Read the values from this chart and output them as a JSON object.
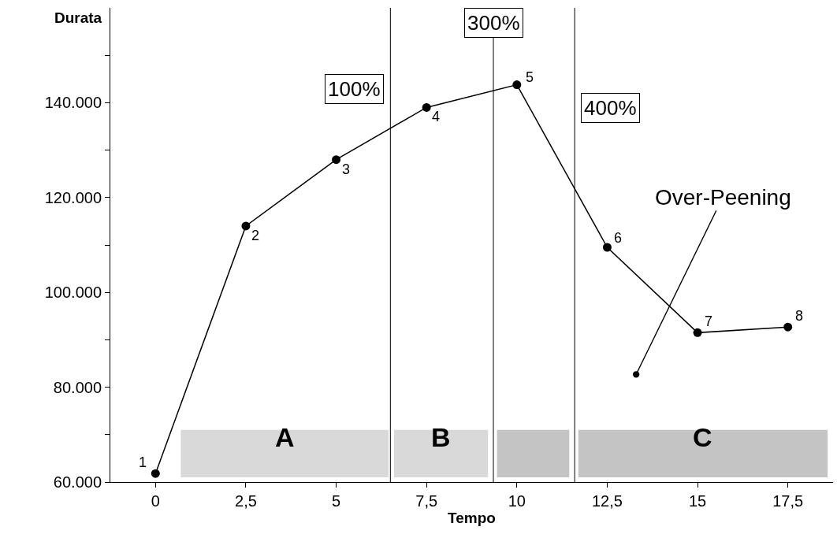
{
  "chart_data": {
    "type": "line",
    "xlabel": "Tempo",
    "ylabel": "Durata",
    "x": [
      0,
      2.5,
      5,
      7.5,
      10,
      12.5,
      15,
      17.5
    ],
    "series": [
      {
        "color": "#000000",
        "values": [
          61800,
          114000,
          128000,
          139000,
          143800,
          109500,
          91500,
          92700
        ]
      }
    ],
    "xlim": [
      -1.25,
      18.75
    ],
    "ylim": [
      60000,
      160000
    ],
    "xticks": [
      0,
      {
        "value": 2.5,
        "label": "2,5"
      },
      5,
      {
        "value": 7.5,
        "label": "7,5"
      },
      10,
      {
        "value": 12.5,
        "label": "12,5"
      },
      15,
      {
        "value": 17.5,
        "label": "17,5"
      }
    ],
    "yticks": [
      {
        "value": 60000,
        "label": "60.000"
      },
      {
        "value": 70000,
        "label": null
      },
      {
        "value": 80000,
        "label": "80.000"
      },
      {
        "value": 90000,
        "label": null
      },
      {
        "value": 100000,
        "label": "100.000"
      },
      {
        "value": 110000,
        "label": null
      },
      {
        "value": 120000,
        "label": "120.000"
      },
      {
        "value": 130000,
        "label": null
      },
      {
        "value": 140000,
        "label": "140.000"
      },
      {
        "value": 150000,
        "label": null
      }
    ],
    "ref_lines": [
      {
        "axis": "x",
        "value": 6.5,
        "color": "#000000"
      },
      {
        "axis": "x",
        "value": 9.35,
        "color": "#000000"
      },
      {
        "axis": "x",
        "value": 11.6,
        "color": "#000000"
      }
    ],
    "bands": [
      {
        "axis": "x",
        "from": 0.7,
        "to": 6.45,
        "label": "A",
        "color": "#d9d9d9"
      },
      {
        "axis": "x",
        "from": 6.6,
        "to": 9.2,
        "label": "B",
        "color": "#d9d9d9"
      },
      {
        "axis": "x",
        "from": 9.45,
        "to": 11.45,
        "label": null,
        "color": "#c4c4c4"
      },
      {
        "axis": "x",
        "from": 11.7,
        "to": 18.6,
        "label": "C",
        "color": "#c4c4c4"
      }
    ],
    "annotations": [
      {
        "text": "1",
        "x": 0,
        "y": 61800
      },
      {
        "text": "2",
        "x": 2.5,
        "y": 114000
      },
      {
        "text": "3",
        "x": 5,
        "y": 128000
      },
      {
        "text": "4",
        "x": 7.5,
        "y": 139000
      },
      {
        "text": "5",
        "x": 10,
        "y": 143800
      },
      {
        "text": "6",
        "x": 12.5,
        "y": 109500
      },
      {
        "text": "7",
        "x": 15,
        "y": 91500
      },
      {
        "text": "8",
        "x": 17.5,
        "y": 92700
      },
      {
        "text": "Over-Peening",
        "x": 13.3,
        "y": 82700
      },
      "100%",
      "300%",
      "400%"
    ],
    "marker": "circle",
    "line_style": "solid",
    "grid": false,
    "legend": false
  }
}
